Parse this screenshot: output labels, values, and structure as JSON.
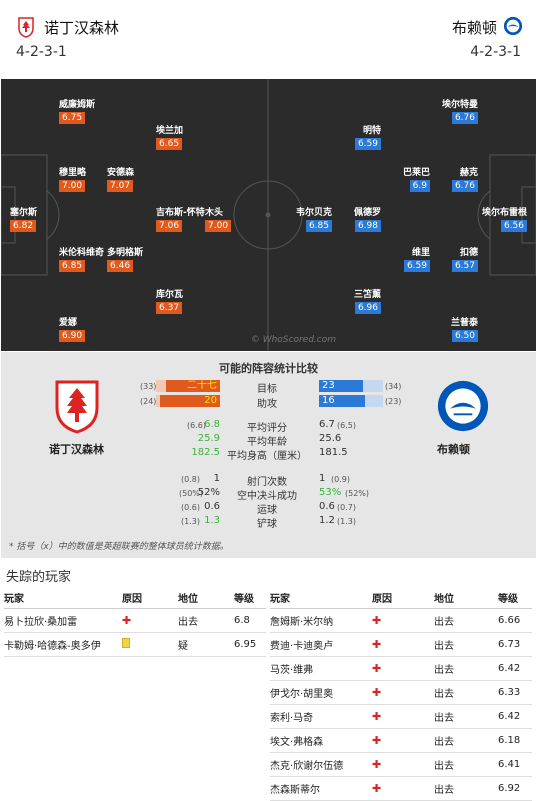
{
  "header": {
    "home_name": "诺丁汉森林",
    "away_name": "布赖顿",
    "home_formation": "4-2-3-1",
    "away_formation": "4-2-3-1"
  },
  "pitch": {
    "watermark": "© WhoScored.com",
    "home_players": [
      {
        "name": "威廉姆斯",
        "rating": "6.75"
      },
      {
        "name": "埃兰加",
        "rating": "6.65"
      },
      {
        "name": "穆里略",
        "rating": "7.00"
      },
      {
        "name": "安德森",
        "rating": "7.07"
      },
      {
        "name": "塞尔斯",
        "rating": "6.82"
      },
      {
        "name": "吉布斯-怀特",
        "rating": "7.06"
      },
      {
        "name": "木头",
        "rating": "7.00"
      },
      {
        "name": "米伦科维奇",
        "rating": "6.85"
      },
      {
        "name": "多明格斯",
        "rating": "6.46"
      },
      {
        "name": "库尔瓦",
        "rating": "6.37"
      },
      {
        "name": "爱娜",
        "rating": "6.90"
      }
    ],
    "away_players": [
      {
        "name": "埃尔特曼",
        "rating": "6.76"
      },
      {
        "name": "明特",
        "rating": "6.59"
      },
      {
        "name": "巴莱巴",
        "rating": "6.9"
      },
      {
        "name": "赫克",
        "rating": "6.76"
      },
      {
        "name": "韦尔贝克",
        "rating": "6.85"
      },
      {
        "name": "佩德罗",
        "rating": "6.98"
      },
      {
        "name": "埃尔布雷根",
        "rating": "6.56"
      },
      {
        "name": "维里",
        "rating": "6.59"
      },
      {
        "name": "扣德",
        "rating": "6.57"
      },
      {
        "name": "三笘薰",
        "rating": "6.96"
      },
      {
        "name": "兰普泰",
        "rating": "6.50"
      }
    ]
  },
  "comparison": {
    "title": "可能的阵容统计比较",
    "home_label": "诺丁汉森林",
    "away_label": "布赖顿",
    "rows": [
      {
        "label": "目标",
        "home_sub": "(33)",
        "home": "二十七",
        "away": "23",
        "away_sub": "(34)"
      },
      {
        "label": "助攻",
        "home_sub": "(24)",
        "home": "20",
        "away": "16",
        "away_sub": "(23)"
      },
      {
        "label": "平均评分",
        "home_sub": "(6.6)",
        "home": "6.8",
        "away": "6.7",
        "away_sub": "(6.5)"
      },
      {
        "label": "平均年龄",
        "home_sub": "",
        "home": "25.9",
        "away": "25.6",
        "away_sub": ""
      },
      {
        "label": "平均身高（厘米）",
        "home_sub": "",
        "home": "182.5",
        "away": "181.5",
        "away_sub": ""
      },
      {
        "label": "射门次数",
        "home_sub": "(0.8)",
        "home": "1",
        "away": "1",
        "away_sub": "(0.9)"
      },
      {
        "label": "空中决斗成功",
        "home_sub": "(50%)",
        "home": "52%",
        "away": "53%",
        "away_sub": "(52%)"
      },
      {
        "label": "运球",
        "home_sub": "(0.6)",
        "home": "0.6",
        "away": "0.6",
        "away_sub": "(0.7)"
      },
      {
        "label": "铲球",
        "home_sub": "(1.3)",
        "home": "1.3",
        "away": "1.2",
        "away_sub": "(1.3)"
      }
    ],
    "footnote": "* 括号（x）中的数值是英超联赛的整体球员统计数据。"
  },
  "missing": {
    "title": "失踪的玩家",
    "headers": [
      "玩家",
      "原因",
      "地位",
      "等级"
    ],
    "home": [
      {
        "player": "易卜拉欣·桑加雷",
        "reason": "injury",
        "status": "出去",
        "rating": "6.8"
      },
      {
        "player": "卡勒姆·哈德森-奥多伊",
        "reason": "doubt",
        "status": "疑",
        "rating": "6.95"
      }
    ],
    "away": [
      {
        "player": "詹姆斯·米尔纳",
        "reason": "injury",
        "status": "出去",
        "rating": "6.66"
      },
      {
        "player": "费迪·卡迪奥卢",
        "reason": "injury",
        "status": "出去",
        "rating": "6.73"
      },
      {
        "player": "马茨·维弗",
        "reason": "injury",
        "status": "出去",
        "rating": "6.42"
      },
      {
        "player": "伊戈尔·胡里奥",
        "reason": "injury",
        "status": "出去",
        "rating": "6.33"
      },
      {
        "player": "索利·马奇",
        "reason": "injury",
        "status": "出去",
        "rating": "6.42"
      },
      {
        "player": "埃文·弗格森",
        "reason": "injury",
        "status": "出去",
        "rating": "6.18"
      },
      {
        "player": "杰克·欣谢尔伍德",
        "reason": "injury",
        "status": "出去",
        "rating": "6.41"
      },
      {
        "player": "杰森斯蒂尔",
        "reason": "injury",
        "status": "出去",
        "rating": "6.92"
      }
    ]
  }
}
